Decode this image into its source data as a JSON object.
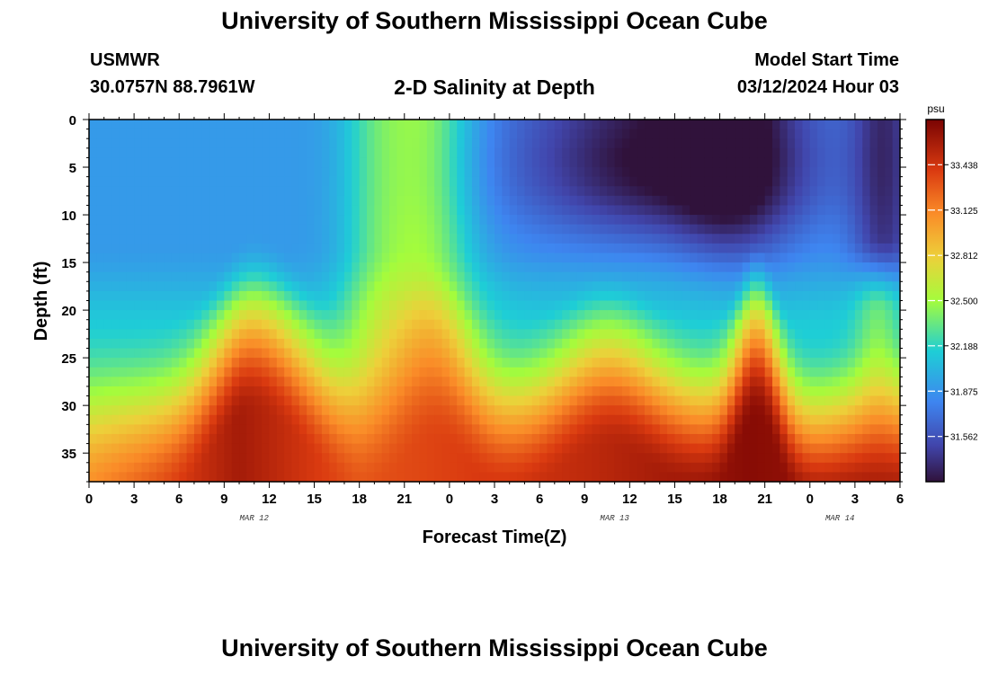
{
  "header": {
    "title": "University of Southern Mississippi Ocean Cube",
    "station": "USMWR",
    "coords": "30.0757N  88.7961W",
    "subtitle": "2-D Salinity at Depth",
    "start_label": "Model Start Time",
    "start_value": "03/12/2024 Hour 03"
  },
  "footer": {
    "title": "University of Southern Mississippi Ocean Cube"
  },
  "chart_data": {
    "type": "heatmap",
    "title": "2-D Salinity at Depth",
    "xlabel": "Forecast Time(Z)",
    "ylabel": "Depth (ft)",
    "x_tick_labels": [
      "0",
      "3",
      "6",
      "9",
      "12",
      "15",
      "18",
      "21",
      "0",
      "3",
      "6",
      "9",
      "12",
      "15",
      "18",
      "21",
      "0",
      "3",
      "6"
    ],
    "x_range_hours": [
      0,
      54
    ],
    "date_labels": [
      {
        "text": "MAR 12",
        "hour": 11
      },
      {
        "text": "MAR 13",
        "hour": 35
      },
      {
        "text": "MAR 14",
        "hour": 50
      }
    ],
    "ylim": [
      0,
      38
    ],
    "y_ticks": [
      0,
      5,
      10,
      15,
      20,
      25,
      30,
      35
    ],
    "y_reversed": true,
    "colorbar": {
      "unit": "psu",
      "min": 31.25,
      "max": 33.75,
      "tick_labels": [
        "31.562",
        "31.875",
        "32.188",
        "32.500",
        "32.812",
        "33.125",
        "33.438"
      ]
    },
    "bottom_salinity_psu": [
      {
        "hour": 0,
        "value": 33.1
      },
      {
        "hour": 10,
        "value": 33.6
      },
      {
        "hour": 18,
        "value": 33.3
      },
      {
        "hour": 33,
        "value": 33.5
      },
      {
        "hour": 44,
        "value": 33.7
      },
      {
        "hour": 54,
        "value": 33.6
      }
    ]
  }
}
